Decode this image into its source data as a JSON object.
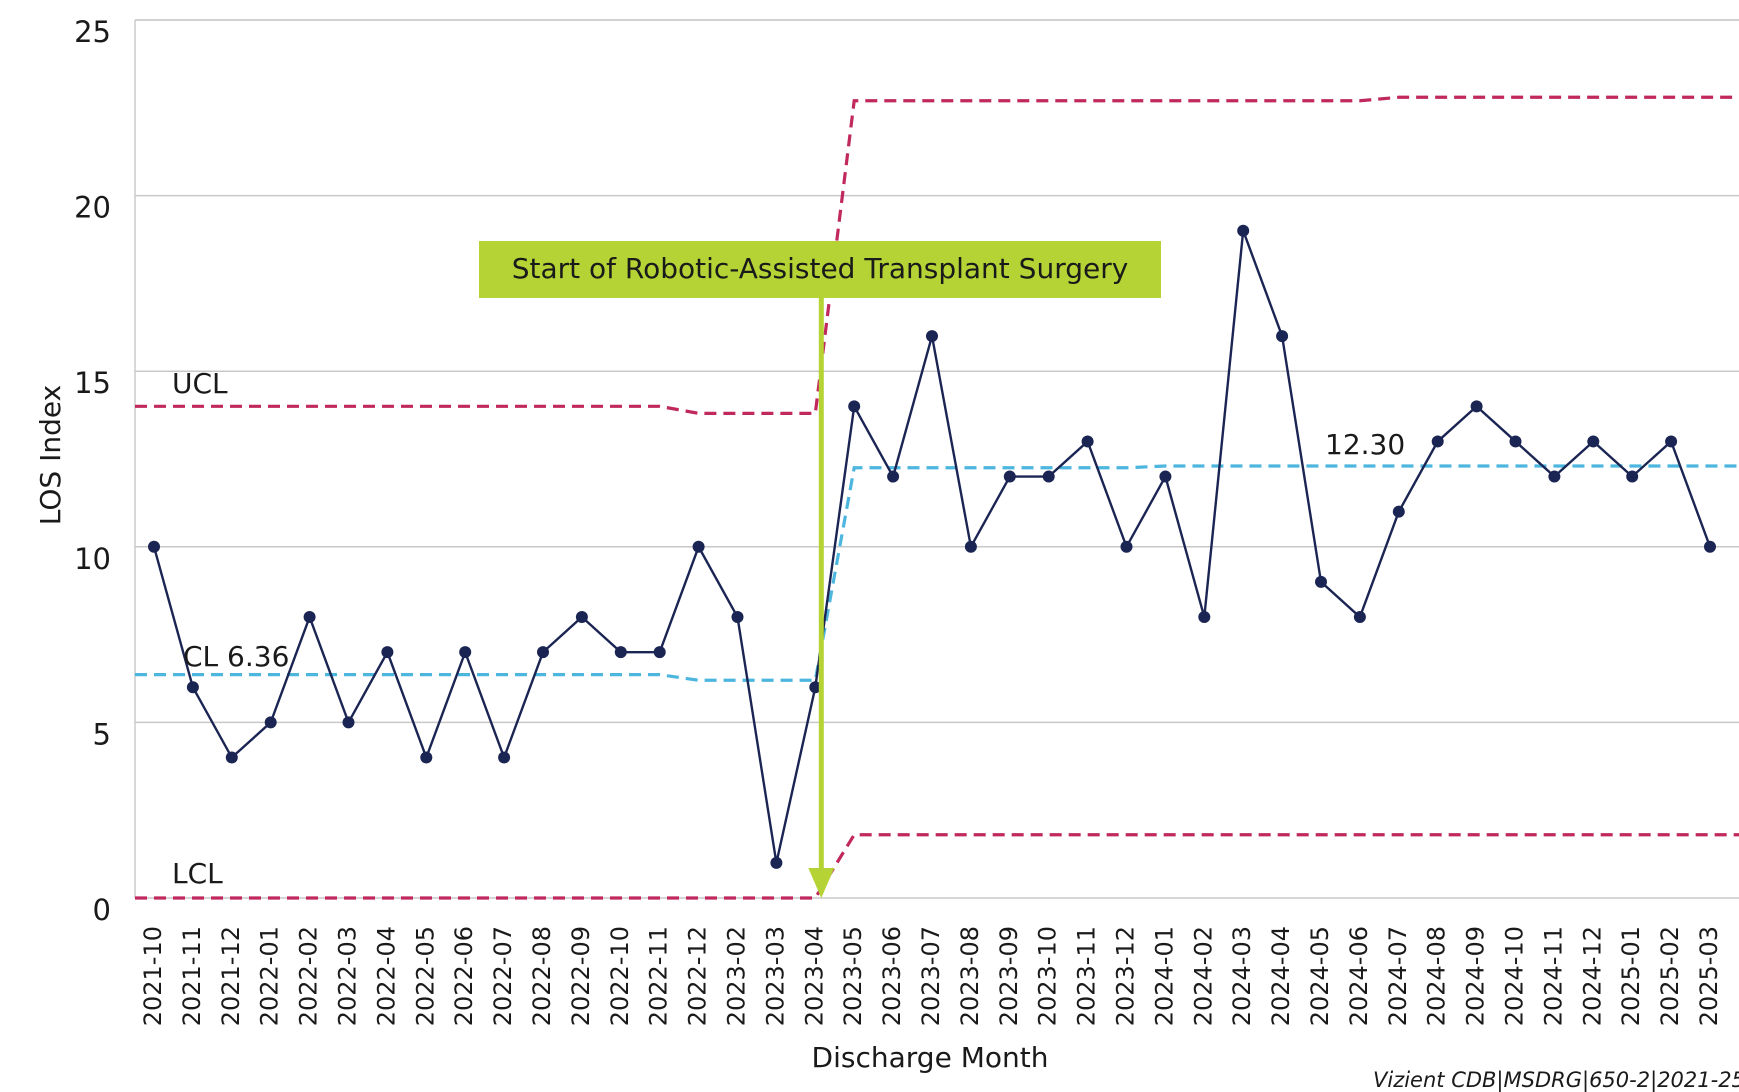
{
  "chart_data": {
    "type": "line",
    "y_label": "LOS Index",
    "x_label": "Discharge Month",
    "annotation": "Start of Robotic-Assisted Transplant Surgery",
    "ucl_label": "UCL",
    "cl_label": "CL 6.36",
    "lcl_label": "LCL",
    "cl2_label": "12.30",
    "footer": "Vizient CDB|MSDRG|650-2|2021-25",
    "categories": [
      "2021-10",
      "2021-11",
      "2021-12",
      "2022-01",
      "2022-02",
      "2022-03",
      "2022-04",
      "2022-05",
      "2022-06",
      "2022-07",
      "2022-08",
      "2022-09",
      "2022-10",
      "2022-11",
      "2022-12",
      "2023-02",
      "2023-03",
      "2023-04",
      "2023-05",
      "2023-06",
      "2023-07",
      "2023-08",
      "2023-09",
      "2023-10",
      "2023-11",
      "2023-12",
      "2024-01",
      "2024-02",
      "2024-03",
      "2024-04",
      "2024-05",
      "2024-06",
      "2024-07",
      "2024-08",
      "2024-09",
      "2024-10",
      "2024-11",
      "2024-12",
      "2025-01",
      "2025-02",
      "2025-03"
    ],
    "series": [
      {
        "name": "LOS Index",
        "color": "#1b2553",
        "style": "solid",
        "markers": true,
        "values": [
          10,
          6,
          4,
          5,
          8,
          5,
          7,
          4,
          7,
          4,
          7,
          8,
          7,
          7,
          10,
          8,
          1,
          6,
          14,
          12,
          16,
          10,
          12,
          12,
          13,
          10,
          12,
          8,
          19,
          16,
          9,
          8,
          11,
          13,
          14,
          13,
          12,
          13,
          12,
          13,
          10
        ]
      },
      {
        "name": "UCL",
        "color": "#c0285e",
        "style": "dashed",
        "markers": false,
        "values": [
          14,
          14,
          14,
          14,
          14,
          14,
          14,
          14,
          14,
          14,
          14,
          14,
          14,
          14,
          13.8,
          13.8,
          13.8,
          13.8,
          22.7,
          22.7,
          22.7,
          22.7,
          22.7,
          22.7,
          22.7,
          22.7,
          22.7,
          22.7,
          22.7,
          22.7,
          22.7,
          22.7,
          22.8,
          22.8,
          22.8,
          22.8,
          22.8,
          22.8,
          22.8,
          22.8,
          22.8
        ]
      },
      {
        "name": "CL",
        "color": "#4db6df",
        "style": "dashed",
        "markers": false,
        "values": [
          6.36,
          6.36,
          6.36,
          6.36,
          6.36,
          6.36,
          6.36,
          6.36,
          6.36,
          6.36,
          6.36,
          6.36,
          6.36,
          6.36,
          6.2,
          6.2,
          6.2,
          6.2,
          12.25,
          12.25,
          12.25,
          12.25,
          12.25,
          12.25,
          12.25,
          12.25,
          12.3,
          12.3,
          12.3,
          12.3,
          12.3,
          12.3,
          12.3,
          12.3,
          12.3,
          12.3,
          12.3,
          12.3,
          12.3,
          12.3,
          12.3
        ]
      },
      {
        "name": "LCL",
        "color": "#c0285e",
        "style": "dashed",
        "markers": false,
        "values": [
          0,
          0,
          0,
          0,
          0,
          0,
          0,
          0,
          0,
          0,
          0,
          0,
          0,
          0,
          0,
          0,
          0,
          0,
          1.8,
          1.8,
          1.8,
          1.8,
          1.8,
          1.8,
          1.8,
          1.8,
          1.8,
          1.8,
          1.8,
          1.8,
          1.8,
          1.8,
          1.8,
          1.8,
          1.8,
          1.8,
          1.8,
          1.8,
          1.8,
          1.8,
          1.8
        ]
      }
    ],
    "ylim": [
      0,
      25
    ],
    "yticks": [
      0,
      5,
      10,
      15,
      20,
      25
    ],
    "grid": true
  }
}
